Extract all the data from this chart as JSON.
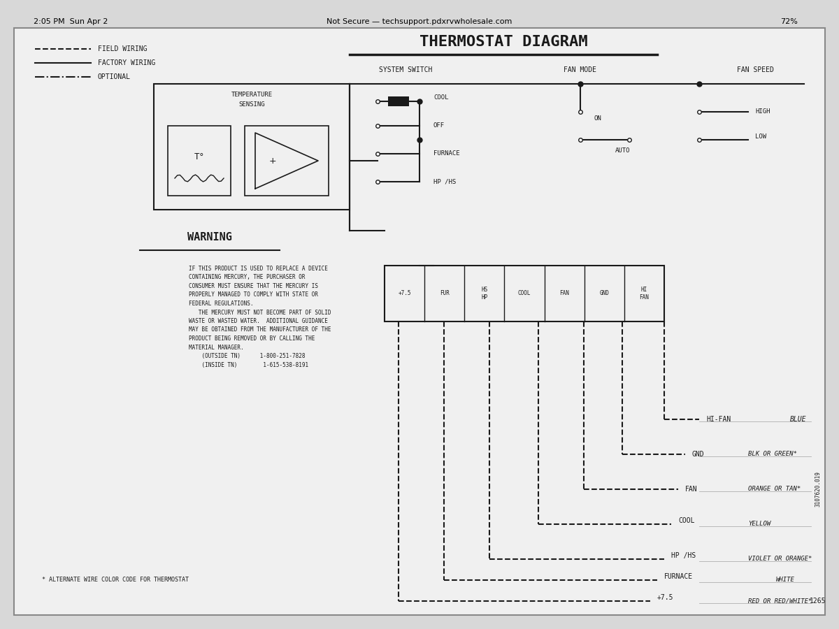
{
  "bg_color": "#d8d8d8",
  "paper_color": "#e8e8e8",
  "line_color": "#1a1a1a",
  "title": "THERMOSTAT DIAGRAM",
  "legend_items": [
    {
      "label": "FIELD WIRING",
      "style": "dashed"
    },
    {
      "label": "FACTORY WIRING",
      "style": "solid"
    },
    {
      "label": "OPTIONAL",
      "style": "dashdot"
    }
  ],
  "system_switch_label": "SYSTEM SWITCH",
  "fan_mode_label": "FAN MODE",
  "fan_speed_label": "FAN SPEED",
  "temp_sensing_label": [
    "TEMPERATURE",
    "SENSING"
  ],
  "switch_positions": [
    "COOL",
    "OFF",
    "FURNACE",
    "HP /HS"
  ],
  "fan_mode_positions": [
    "ON",
    "AUTO"
  ],
  "fan_speed_positions": [
    "HIGH",
    "LOW"
  ],
  "terminal_labels": [
    "+7.5",
    "FUR",
    "HS\nHP",
    "COOL",
    "FAN",
    "GND",
    "HI\nFAN"
  ],
  "wire_labels": [
    {
      "label": "HI-FAN",
      "color_text": "BLUE"
    },
    {
      "label": "GND",
      "color_text": "BLK OR GREEN*"
    },
    {
      "label": "FAN",
      "color_text": "ORANGE OR TAN*"
    },
    {
      "label": "COOL",
      "color_text": "YELLOW"
    },
    {
      "label": "HP /HS",
      "color_text": "VIOLET OR ORANGE*"
    },
    {
      "label": "FURNACE",
      "color_text": "WHITE"
    },
    {
      "+7.5": "+7.5",
      "color_text": "RED OR RED/WHITE*"
    }
  ],
  "warning_title": "WARNING",
  "warning_text": "IF THIS PRODUCT IS USED TO REPLACE A DEVICE\nCONTAINING MERCURY, THE PURCHASER OR\nCONSUMER MUST ENSURE THAT THE MERCURY IS\nPROPERLY MANAGED TO COMPLY WITH STATE OR\nFEDERAL REGULATIONS.\n   THE MERCURY MUST NOT BECOME PART OF SOLID\nWASTE OR WASTED WATER.  ADDITIONAL GUIDANCE\nMAY BE OBTAINED FROM THE MANUFACTURER OF THE\nPRODUCT BEING REMOVED OR BY CALLING THE\nMATERIAL MANAGER.\n    (OUTSIDE TN)      1-800-251-7828\n    (INSIDE TN)        1-615-538-8191",
  "footnote": "* ALTERNATE WIRE COLOR CODE FOR THERMOSTAT",
  "part_number": "3107620.019",
  "doc_number": "1265",
  "browser_bar": "Not Secure — techsupport.pdxrvwholesale.com",
  "status_left": "2:05 PM  Sun Apr 2",
  "status_right": "72%"
}
